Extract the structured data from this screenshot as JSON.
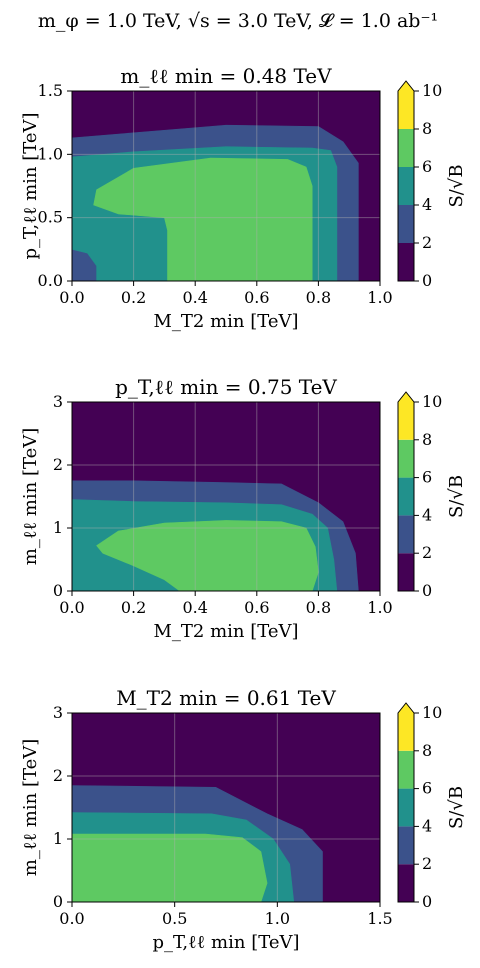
{
  "figure": {
    "suptitle": "m_φ = 1.0 TeV, √s = 3.0 TeV, 𝓛 = 1.0 ab⁻¹"
  },
  "colorbar": {
    "label": "S/√B",
    "ticks": [
      "0",
      "2",
      "4",
      "6",
      "8",
      "10"
    ],
    "levels": [
      0,
      2,
      4,
      6,
      8,
      10
    ],
    "colors": [
      "#440154",
      "#3b528b",
      "#21918c",
      "#5ec962",
      "#fde725"
    ],
    "extend": "max"
  },
  "chart_data": [
    {
      "type": "heatmap",
      "title": "m_ℓℓ min = 0.48 TeV",
      "xlabel": "M_T2 min [TeV]",
      "ylabel": "p_T,ℓℓ min [TeV]",
      "xlim": [
        0.0,
        1.0
      ],
      "ylim": [
        0.0,
        1.5
      ],
      "xticks": [
        "0.0",
        "0.2",
        "0.4",
        "0.6",
        "0.8",
        "1.0"
      ],
      "yticks": [
        "0.0",
        "0.5",
        "1.0",
        "1.5"
      ],
      "grid": true,
      "regions": [
        {
          "level": "0-2",
          "color": "#440154",
          "polygon": [
            [
              0,
              0
            ],
            [
              1,
              0
            ],
            [
              1,
              1.5
            ],
            [
              0,
              1.5
            ]
          ]
        },
        {
          "level": "2-4",
          "color": "#3b528b",
          "polygon": [
            [
              0,
              0
            ],
            [
              0.93,
              0
            ],
            [
              0.93,
              0.93
            ],
            [
              0.88,
              1.1
            ],
            [
              0.8,
              1.22
            ],
            [
              0.5,
              1.23
            ],
            [
              0.2,
              1.17
            ],
            [
              0,
              1.13
            ]
          ]
        },
        {
          "level": "4-6",
          "color": "#21918c",
          "polygon": [
            [
              0.08,
              0
            ],
            [
              0.86,
              0
            ],
            [
              0.86,
              0.9
            ],
            [
              0.84,
              1.03
            ],
            [
              0.78,
              1.05
            ],
            [
              0.5,
              1.06
            ],
            [
              0.2,
              1.02
            ],
            [
              0,
              0.98
            ],
            [
              0,
              0.25
            ],
            [
              0.05,
              0.22
            ],
            [
              0.08,
              0.12
            ]
          ]
        },
        {
          "level": "6-8",
          "color": "#5ec962",
          "polygon": [
            [
              0.31,
              0
            ],
            [
              0.78,
              0
            ],
            [
              0.78,
              0.75
            ],
            [
              0.76,
              0.9
            ],
            [
              0.7,
              0.96
            ],
            [
              0.45,
              0.97
            ],
            [
              0.2,
              0.89
            ],
            [
              0.08,
              0.72
            ],
            [
              0.07,
              0.6
            ],
            [
              0.15,
              0.53
            ],
            [
              0.3,
              0.5
            ],
            [
              0.31,
              0.4
            ]
          ]
        }
      ]
    },
    {
      "type": "heatmap",
      "title": "p_T,ℓℓ min = 0.75 TeV",
      "xlabel": "M_T2 min [TeV]",
      "ylabel": "m_ℓℓ min [TeV]",
      "xlim": [
        0.0,
        1.0
      ],
      "ylim": [
        0.0,
        3.0
      ],
      "xticks": [
        "0.0",
        "0.2",
        "0.4",
        "0.6",
        "0.8",
        "1.0"
      ],
      "yticks": [
        "0",
        "1",
        "2",
        "3"
      ],
      "grid": true,
      "regions": [
        {
          "level": "0-2",
          "color": "#440154",
          "polygon": [
            [
              0,
              0
            ],
            [
              1,
              0
            ],
            [
              1,
              3
            ],
            [
              0,
              3
            ]
          ]
        },
        {
          "level": "2-4",
          "color": "#3b528b",
          "polygon": [
            [
              0,
              0
            ],
            [
              0.93,
              0
            ],
            [
              0.92,
              0.6
            ],
            [
              0.88,
              1.1
            ],
            [
              0.8,
              1.4
            ],
            [
              0.68,
              1.7
            ],
            [
              0.5,
              1.72
            ],
            [
              0.2,
              1.75
            ],
            [
              0,
              1.75
            ]
          ]
        },
        {
          "level": "4-6",
          "color": "#21918c",
          "polygon": [
            [
              0,
              0
            ],
            [
              0.86,
              0
            ],
            [
              0.85,
              0.5
            ],
            [
              0.83,
              1.0
            ],
            [
              0.78,
              1.22
            ],
            [
              0.68,
              1.37
            ],
            [
              0.5,
              1.4
            ],
            [
              0.2,
              1.42
            ],
            [
              0,
              1.45
            ]
          ]
        },
        {
          "level": "6-8",
          "color": "#5ec962",
          "polygon": [
            [
              0.35,
              0
            ],
            [
              0.78,
              0
            ],
            [
              0.8,
              0.3
            ],
            [
              0.79,
              0.7
            ],
            [
              0.76,
              1.0
            ],
            [
              0.68,
              1.1
            ],
            [
              0.5,
              1.12
            ],
            [
              0.3,
              1.08
            ],
            [
              0.15,
              0.95
            ],
            [
              0.08,
              0.72
            ],
            [
              0.1,
              0.6
            ],
            [
              0.2,
              0.4
            ],
            [
              0.3,
              0.18
            ]
          ]
        }
      ]
    },
    {
      "type": "heatmap",
      "title": "M_T2 min = 0.61 TeV",
      "xlabel": "p_T,ℓℓ min [TeV]",
      "ylabel": "m_ℓℓ min [TeV]",
      "xlim": [
        0.0,
        1.5
      ],
      "ylim": [
        0.0,
        3.0
      ],
      "xticks": [
        "0.0",
        "0.5",
        "1.0",
        "1.5"
      ],
      "yticks": [
        "0",
        "1",
        "2",
        "3"
      ],
      "grid": true,
      "regions": [
        {
          "level": "0-2",
          "color": "#440154",
          "polygon": [
            [
              0,
              0
            ],
            [
              1.5,
              0
            ],
            [
              1.5,
              3
            ],
            [
              0,
              3
            ]
          ]
        },
        {
          "level": "2-4",
          "color": "#3b528b",
          "polygon": [
            [
              0,
              0
            ],
            [
              1.22,
              0
            ],
            [
              1.22,
              0.8
            ],
            [
              1.12,
              1.15
            ],
            [
              0.95,
              1.4
            ],
            [
              0.7,
              1.82
            ],
            [
              0,
              1.85
            ]
          ]
        },
        {
          "level": "4-6",
          "color": "#21918c",
          "polygon": [
            [
              0,
              0
            ],
            [
              1.08,
              0
            ],
            [
              1.06,
              0.6
            ],
            [
              0.98,
              1.0
            ],
            [
              0.85,
              1.3
            ],
            [
              0.68,
              1.4
            ],
            [
              0,
              1.42
            ]
          ]
        },
        {
          "level": "6-8",
          "color": "#5ec962",
          "polygon": [
            [
              0,
              0
            ],
            [
              0.92,
              0
            ],
            [
              0.95,
              0.3
            ],
            [
              0.92,
              0.8
            ],
            [
              0.83,
              1.02
            ],
            [
              0.65,
              1.08
            ],
            [
              0,
              1.08
            ]
          ]
        }
      ]
    }
  ]
}
